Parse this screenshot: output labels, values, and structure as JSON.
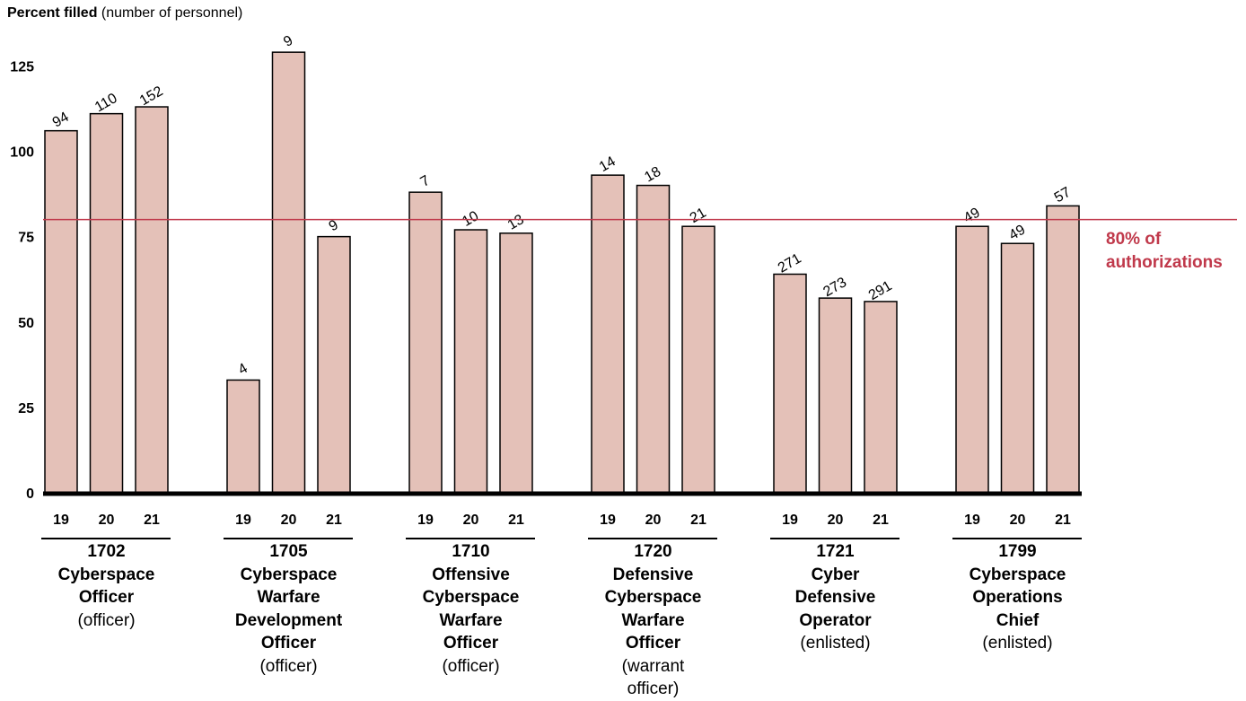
{
  "chart_data": {
    "type": "bar",
    "ylabel_bold": "Percent filled",
    "ylabel_rest": " (number of personnel)",
    "ylim": [
      0,
      135
    ],
    "y_ticks": [
      0,
      25,
      50,
      75,
      100,
      125
    ],
    "reference_line": {
      "value": 80,
      "label_line1": "80% of",
      "label_line2": "authorizations",
      "color": "#c0394b"
    },
    "bar_color": "#e4c1b8",
    "groups": [
      {
        "code": "1702",
        "title_lines": [
          "1702",
          "Cyberspace",
          "Officer"
        ],
        "note_lines": [
          "(officer)"
        ],
        "bars": [
          {
            "x": "19",
            "value": 106,
            "label": "94"
          },
          {
            "x": "20",
            "value": 111,
            "label": "110"
          },
          {
            "x": "21",
            "value": 113,
            "label": "152"
          }
        ]
      },
      {
        "code": "1705",
        "title_lines": [
          "1705",
          "Cyberspace",
          "Warfare",
          "Development",
          "Officer"
        ],
        "note_lines": [
          "(officer)"
        ],
        "bars": [
          {
            "x": "19",
            "value": 33,
            "label": "4"
          },
          {
            "x": "20",
            "value": 129,
            "label": "9"
          },
          {
            "x": "21",
            "value": 75,
            "label": "9"
          }
        ]
      },
      {
        "code": "1710",
        "title_lines": [
          "1710",
          "Offensive",
          "Cyberspace",
          "Warfare",
          "Officer"
        ],
        "note_lines": [
          "(officer)"
        ],
        "bars": [
          {
            "x": "19",
            "value": 88,
            "label": "7"
          },
          {
            "x": "20",
            "value": 77,
            "label": "10"
          },
          {
            "x": "21",
            "value": 76,
            "label": "13"
          }
        ]
      },
      {
        "code": "1720",
        "title_lines": [
          "1720",
          "Defensive",
          "Cyberspace",
          "Warfare",
          "Officer"
        ],
        "note_lines": [
          "(warrant",
          "officer)"
        ],
        "bars": [
          {
            "x": "19",
            "value": 93,
            "label": "14"
          },
          {
            "x": "20",
            "value": 90,
            "label": "18"
          },
          {
            "x": "21",
            "value": 78,
            "label": "21"
          }
        ]
      },
      {
        "code": "1721",
        "title_lines": [
          "1721",
          "Cyber",
          "Defensive",
          "Operator"
        ],
        "note_lines": [
          "(enlisted)"
        ],
        "bars": [
          {
            "x": "19",
            "value": 64,
            "label": "271"
          },
          {
            "x": "20",
            "value": 57,
            "label": "273"
          },
          {
            "x": "21",
            "value": 56,
            "label": "291"
          }
        ]
      },
      {
        "code": "1799",
        "title_lines": [
          "1799",
          "Cyberspace",
          "Operations",
          "Chief"
        ],
        "note_lines": [
          "(enlisted)"
        ],
        "bars": [
          {
            "x": "19",
            "value": 78,
            "label": "49"
          },
          {
            "x": "20",
            "value": 73,
            "label": "49"
          },
          {
            "x": "21",
            "value": 84,
            "label": "57"
          }
        ]
      }
    ]
  }
}
